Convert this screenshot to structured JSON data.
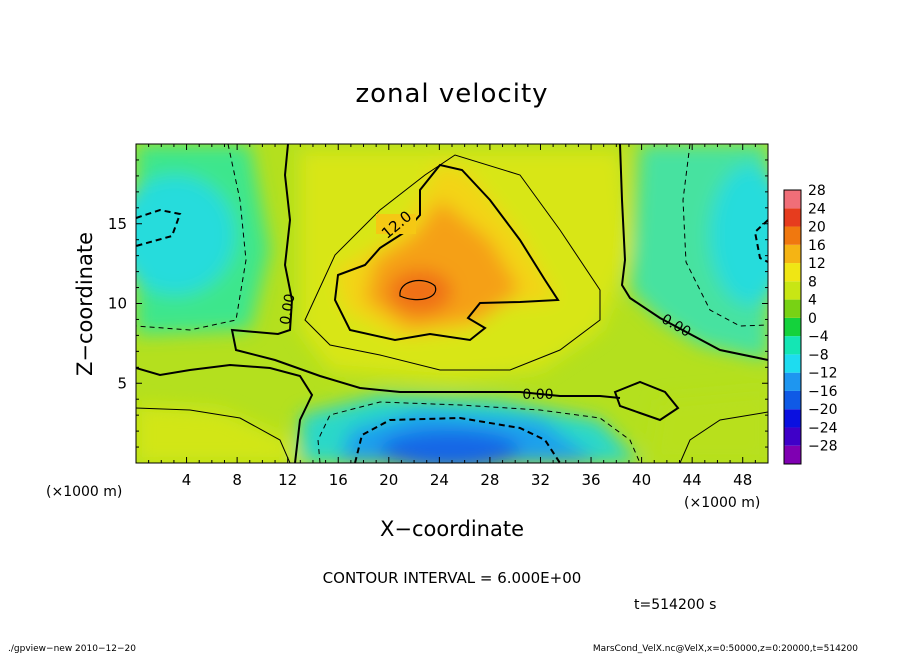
{
  "chart_data": {
    "type": "heatmap",
    "title": "zonal velocity",
    "xlabel": "X−coordinate",
    "ylabel": "Z−coordinate",
    "x_unit": "(×1000 m)",
    "y_unit": "(×1000 m)",
    "xlim": [
      0,
      50
    ],
    "ylim": [
      0,
      20
    ],
    "x_ticks": [
      4,
      8,
      12,
      16,
      20,
      24,
      28,
      32,
      36,
      40,
      44,
      48
    ],
    "x_tick_labels": [
      "4",
      "8",
      "12",
      "16",
      "20",
      "24",
      "28",
      "32",
      "36",
      "40",
      "44",
      "48"
    ],
    "y_ticks": [
      5,
      10,
      15
    ],
    "y_tick_labels": [
      "5",
      "10",
      "15"
    ],
    "colorbar": {
      "levels": [
        -28,
        -24,
        -20,
        -16,
        -12,
        -8,
        -4,
        0,
        4,
        8,
        12,
        16,
        20,
        24,
        28
      ],
      "labels": [
        "−28",
        "−24",
        "−20",
        "−16",
        "−12",
        "−8",
        "−4",
        "0",
        "4",
        "8",
        "12",
        "16",
        "20",
        "24",
        "28"
      ],
      "colors": [
        "#7f00b2",
        "#3f00c8",
        "#0a10e0",
        "#0f5ae6",
        "#1e96f0",
        "#1edcf0",
        "#14e6b4",
        "#14d23c",
        "#78d214",
        "#c8e614",
        "#f0e614",
        "#f5b414",
        "#f0780f",
        "#e63c1e",
        "#f06e78"
      ]
    },
    "contour_labels": [
      "12.0",
      "0.00",
      "0.00",
      "0.00"
    ],
    "contour_interval_text": "CONTOUR INTERVAL = 6.000E+00",
    "time_text": "t=514200 s",
    "footer_left": "./gpview−new  2010−12−20",
    "footer_right": "MarsCond_VelX.nc@VelX,x=0:50000,z=0:20000,t=514200"
  }
}
